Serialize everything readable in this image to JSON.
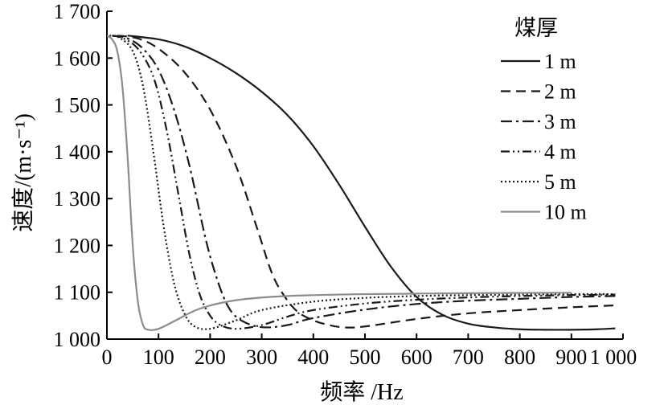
{
  "chart_data": {
    "type": "line",
    "title": "",
    "xlabel": "频率 /Hz",
    "ylabel": "速度/(m·s⁻¹)",
    "xlim": [
      0,
      1000
    ],
    "ylim": [
      1000,
      1700
    ],
    "x_ticks": [
      0,
      100,
      200,
      300,
      400,
      500,
      600,
      700,
      800,
      900,
      1000
    ],
    "x_tick_labels": [
      "0",
      "100",
      "200",
      "300",
      "400",
      "500",
      "600",
      "700",
      "800",
      "900",
      "1 000"
    ],
    "y_ticks": [
      1000,
      1100,
      1200,
      1300,
      1400,
      1500,
      1600,
      1700
    ],
    "y_tick_labels": [
      "1 000",
      "1 100",
      "1 200",
      "1 300",
      "1 400",
      "1 500",
      "1 600",
      "1 700"
    ],
    "grid": false,
    "legend": {
      "title": "煤厚",
      "placement": "top-right"
    },
    "series": [
      {
        "name": "1 m",
        "color": "#1a1a1a",
        "dash": "solid",
        "points": [
          [
            40,
            1648
          ],
          [
            100,
            1640
          ],
          [
            150,
            1625
          ],
          [
            200,
            1600
          ],
          [
            250,
            1568
          ],
          [
            300,
            1528
          ],
          [
            350,
            1478
          ],
          [
            400,
            1412
          ],
          [
            450,
            1330
          ],
          [
            500,
            1240
          ],
          [
            550,
            1155
          ],
          [
            600,
            1090
          ],
          [
            650,
            1052
          ],
          [
            700,
            1033
          ],
          [
            750,
            1025
          ],
          [
            800,
            1021
          ],
          [
            850,
            1020
          ],
          [
            900,
            1020
          ],
          [
            950,
            1021
          ],
          [
            985,
            1023
          ]
        ]
      },
      {
        "name": "2 m",
        "color": "#1a1a1a",
        "dash": "dashed",
        "points": [
          [
            20,
            1648
          ],
          [
            60,
            1642
          ],
          [
            100,
            1620
          ],
          [
            150,
            1570
          ],
          [
            200,
            1490
          ],
          [
            250,
            1370
          ],
          [
            290,
            1240
          ],
          [
            320,
            1140
          ],
          [
            345,
            1090
          ],
          [
            370,
            1058
          ],
          [
            400,
            1040
          ],
          [
            430,
            1030
          ],
          [
            460,
            1025
          ],
          [
            500,
            1027
          ],
          [
            600,
            1043
          ],
          [
            700,
            1055
          ],
          [
            800,
            1062
          ],
          [
            900,
            1068
          ],
          [
            985,
            1072
          ]
        ]
      },
      {
        "name": "3 m",
        "color": "#1a1a1a",
        "dash": "dashdot",
        "points": [
          [
            10,
            1648
          ],
          [
            40,
            1642
          ],
          [
            70,
            1620
          ],
          [
            100,
            1575
          ],
          [
            130,
            1490
          ],
          [
            160,
            1370
          ],
          [
            190,
            1220
          ],
          [
            210,
            1140
          ],
          [
            230,
            1080
          ],
          [
            250,
            1048
          ],
          [
            280,
            1030
          ],
          [
            310,
            1025
          ],
          [
            350,
            1030
          ],
          [
            400,
            1045
          ],
          [
            500,
            1063
          ],
          [
            600,
            1075
          ],
          [
            700,
            1082
          ],
          [
            800,
            1086
          ],
          [
            900,
            1090
          ],
          [
            985,
            1092
          ]
        ]
      },
      {
        "name": "4 m",
        "color": "#1a1a1a",
        "dash": "dashdotdot",
        "points": [
          [
            10,
            1648
          ],
          [
            30,
            1643
          ],
          [
            60,
            1620
          ],
          [
            90,
            1560
          ],
          [
            115,
            1450
          ],
          [
            140,
            1300
          ],
          [
            160,
            1180
          ],
          [
            180,
            1095
          ],
          [
            200,
            1050
          ],
          [
            220,
            1030
          ],
          [
            250,
            1022
          ],
          [
            300,
            1030
          ],
          [
            350,
            1048
          ],
          [
            400,
            1062
          ],
          [
            500,
            1076
          ],
          [
            600,
            1084
          ],
          [
            700,
            1089
          ],
          [
            800,
            1092
          ],
          [
            900,
            1094
          ],
          [
            985,
            1095
          ]
        ]
      },
      {
        "name": "5 m",
        "color": "#1a1a1a",
        "dash": "dotted",
        "points": [
          [
            5,
            1648
          ],
          [
            25,
            1643
          ],
          [
            50,
            1615
          ],
          [
            70,
            1540
          ],
          [
            90,
            1400
          ],
          [
            110,
            1240
          ],
          [
            130,
            1120
          ],
          [
            150,
            1055
          ],
          [
            170,
            1027
          ],
          [
            200,
            1022
          ],
          [
            250,
            1040
          ],
          [
            300,
            1062
          ],
          [
            400,
            1080
          ],
          [
            500,
            1088
          ],
          [
            600,
            1092
          ],
          [
            700,
            1094
          ],
          [
            800,
            1095
          ],
          [
            900,
            1096
          ],
          [
            985,
            1096
          ]
        ]
      },
      {
        "name": "10 m",
        "color": "#8c8c8c",
        "dash": "solid",
        "points": [
          [
            0,
            1648
          ],
          [
            10,
            1640
          ],
          [
            20,
            1615
          ],
          [
            30,
            1540
          ],
          [
            40,
            1390
          ],
          [
            50,
            1200
          ],
          [
            60,
            1080
          ],
          [
            70,
            1030
          ],
          [
            80,
            1020
          ],
          [
            100,
            1022
          ],
          [
            130,
            1038
          ],
          [
            180,
            1065
          ],
          [
            250,
            1083
          ],
          [
            350,
            1092
          ],
          [
            500,
            1096
          ],
          [
            700,
            1098
          ],
          [
            900,
            1099
          ]
        ]
      }
    ]
  }
}
